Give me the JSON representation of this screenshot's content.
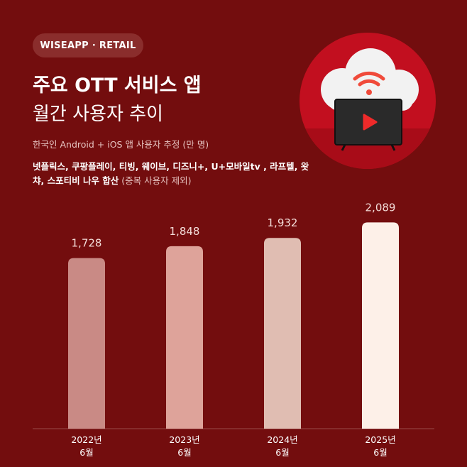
{
  "header": {
    "badge": "WISEAPP · RETAIL",
    "title_line1": "주요 OTT 서비스 앱",
    "title_line2": "월간 사용자 추이",
    "subtitle": "한국인 Android + iOS 앱 사용자 추정 (만 명)",
    "desc_bold": "넷플릭스, 쿠팡플레이, 티빙, 웨이브, 디즈니+, U+모바일tv , 라프텔, 왓챠, 스포티비 나우 합산",
    "desc_note": " (중복 사용자 제외)"
  },
  "illustration": {
    "icon": "cloud-tv-play-icon",
    "bg": "#c20f1f"
  },
  "chart_data": {
    "type": "bar",
    "categories": [
      [
        "2022년",
        "6월"
      ],
      [
        "2023년",
        "6월"
      ],
      [
        "2024년",
        "6월"
      ],
      [
        "2025년",
        "6월"
      ]
    ],
    "values": [
      1728,
      1848,
      1932,
      2089
    ],
    "labels": [
      "1,728",
      "1,848",
      "1,932",
      "2,089"
    ],
    "colors": [
      "#c98a85",
      "#dea39a",
      "#e0bdb2",
      "#fdf0e8"
    ],
    "ylim": [
      0,
      2300
    ],
    "grid": false,
    "ylabel": "",
    "xlabel": ""
  }
}
